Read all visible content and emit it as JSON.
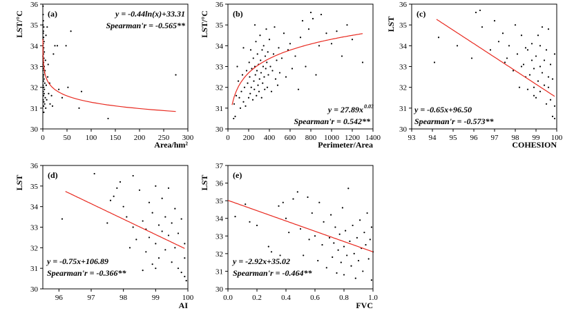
{
  "chart_data": [
    {
      "type": "scatter",
      "panel_label": "(a)",
      "xlabel": "Area/hm²",
      "ylabel": "LST/°C",
      "xlim": [
        0,
        300
      ],
      "ylim": [
        30,
        36
      ],
      "xticks": [
        0,
        50,
        100,
        150,
        200,
        250,
        300
      ],
      "yticks": [
        30,
        31,
        32,
        33,
        34,
        35,
        36
      ],
      "annotations": [
        "y = -0.44ln(x)+33.31",
        "Spearman'r = -0.565**"
      ],
      "fit": {
        "kind": "log",
        "a": -0.44,
        "b": 33.31,
        "x_range": [
          0.1,
          275
        ]
      },
      "points": [
        [
          0.4,
          35.9
        ],
        [
          0.6,
          35.5
        ],
        [
          1,
          35.2
        ],
        [
          0.3,
          35.0
        ],
        [
          2,
          34.9
        ],
        [
          1.2,
          34.7
        ],
        [
          0.8,
          34.6
        ],
        [
          1.6,
          34.4
        ],
        [
          0.5,
          34.3
        ],
        [
          2.5,
          34.2
        ],
        [
          1,
          34.1
        ],
        [
          0.3,
          34.0
        ],
        [
          1.8,
          33.9
        ],
        [
          0.7,
          33.8
        ],
        [
          3,
          33.7
        ],
        [
          1.3,
          33.6
        ],
        [
          0.4,
          33.5
        ],
        [
          2.2,
          33.4
        ],
        [
          0.9,
          33.3
        ],
        [
          1.5,
          33.2
        ],
        [
          0.6,
          33.1
        ],
        [
          2.8,
          33.0
        ],
        [
          1.1,
          32.9
        ],
        [
          0.5,
          32.8
        ],
        [
          3.5,
          32.7
        ],
        [
          1.7,
          32.6
        ],
        [
          0.8,
          32.5
        ],
        [
          2.4,
          32.4
        ],
        [
          1.2,
          32.3
        ],
        [
          4,
          32.2
        ],
        [
          0.6,
          32.1
        ],
        [
          1.9,
          32.0
        ],
        [
          3.2,
          31.9
        ],
        [
          0.9,
          31.8
        ],
        [
          2.6,
          31.7
        ],
        [
          1.4,
          31.6
        ],
        [
          5,
          31.5
        ],
        [
          0.7,
          31.4
        ],
        [
          2.1,
          31.3
        ],
        [
          3.8,
          31.2
        ],
        [
          1.6,
          31.1
        ],
        [
          6,
          31.0
        ],
        [
          4.5,
          32.8
        ],
        [
          5.5,
          33.3
        ],
        [
          7,
          32.1
        ],
        [
          8,
          31.4
        ],
        [
          10,
          32.5
        ],
        [
          12,
          31.7
        ],
        [
          15,
          31.2
        ],
        [
          18,
          31.6
        ],
        [
          6.5,
          34.5
        ],
        [
          9,
          34.9
        ],
        [
          11,
          33.1
        ],
        [
          14,
          32.2
        ],
        [
          25,
          34.0
        ],
        [
          30,
          34.0
        ],
        [
          33,
          31.9
        ],
        [
          48,
          34.0
        ],
        [
          52,
          32.0
        ],
        [
          58,
          34.7
        ],
        [
          75,
          31.0
        ],
        [
          80,
          31.8
        ],
        [
          40,
          31.5
        ],
        [
          20,
          31.1
        ],
        [
          135,
          30.5
        ],
        [
          275,
          32.6
        ],
        [
          2,
          30.8
        ],
        [
          22,
          33.6
        ]
      ]
    },
    {
      "type": "scatter",
      "panel_label": "(b)",
      "xlabel": "Perimeter/Area",
      "ylabel": "LST/°C",
      "xlim": [
        0,
        1400
      ],
      "ylim": [
        30,
        36
      ],
      "xticks": [
        0,
        200,
        400,
        600,
        800,
        1000,
        1200,
        1400
      ],
      "yticks": [
        30,
        31,
        32,
        33,
        34,
        35,
        36
      ],
      "annotations": [
        "y = 27.89x",
        "0.03",
        "Spearman'r = 0.542**"
      ],
      "fit": {
        "kind": "power",
        "a": 27.89,
        "b": 0.03,
        "x_range": [
          40,
          1300
        ]
      },
      "points": [
        [
          55,
          30.5
        ],
        [
          60,
          31.2
        ],
        [
          70,
          30.6
        ],
        [
          80,
          31.6
        ],
        [
          100,
          32.3
        ],
        [
          110,
          31.5
        ],
        [
          120,
          31.0
        ],
        [
          130,
          31.8
        ],
        [
          140,
          32.6
        ],
        [
          150,
          31.3
        ],
        [
          160,
          32.0
        ],
        [
          170,
          31.1
        ],
        [
          180,
          32.8
        ],
        [
          190,
          32.2
        ],
        [
          200,
          31.5
        ],
        [
          205,
          33.2
        ],
        [
          210,
          32.5
        ],
        [
          215,
          31.7
        ],
        [
          220,
          33.8
        ],
        [
          225,
          32.0
        ],
        [
          230,
          32.9
        ],
        [
          240,
          31.4
        ],
        [
          245,
          33.4
        ],
        [
          250,
          32.3
        ],
        [
          255,
          31.9
        ],
        [
          260,
          33.0
        ],
        [
          265,
          32.6
        ],
        [
          270,
          34.2
        ],
        [
          275,
          31.6
        ],
        [
          280,
          32.8
        ],
        [
          285,
          33.6
        ],
        [
          290,
          32.1
        ],
        [
          295,
          33.1
        ],
        [
          300,
          31.8
        ],
        [
          305,
          32.4
        ],
        [
          310,
          34.5
        ],
        [
          315,
          33.3
        ],
        [
          320,
          32.7
        ],
        [
          325,
          31.5
        ],
        [
          330,
          33.8
        ],
        [
          335,
          32.2
        ],
        [
          340,
          33.0
        ],
        [
          345,
          34.0
        ],
        [
          350,
          32.5
        ],
        [
          355,
          31.9
        ],
        [
          360,
          33.5
        ],
        [
          365,
          32.9
        ],
        [
          370,
          34.8
        ],
        [
          375,
          33.2
        ],
        [
          380,
          32.0
        ],
        [
          385,
          33.7
        ],
        [
          390,
          32.6
        ],
        [
          400,
          34.3
        ],
        [
          410,
          33.0
        ],
        [
          420,
          31.8
        ],
        [
          430,
          32.8
        ],
        [
          440,
          33.6
        ],
        [
          450,
          34.9
        ],
        [
          460,
          32.4
        ],
        [
          470,
          33.3
        ],
        [
          480,
          32.1
        ],
        [
          490,
          33.9
        ],
        [
          500,
          32.7
        ],
        [
          520,
          33.4
        ],
        [
          540,
          34.6
        ],
        [
          560,
          32.5
        ],
        [
          580,
          33.8
        ],
        [
          600,
          34.1
        ],
        [
          620,
          32.9
        ],
        [
          650,
          33.5
        ],
        [
          680,
          31.9
        ],
        [
          700,
          34.4
        ],
        [
          720,
          35.2
        ],
        [
          750,
          33.0
        ],
        [
          780,
          34.8
        ],
        [
          800,
          35.6
        ],
        [
          820,
          35.3
        ],
        [
          850,
          32.6
        ],
        [
          880,
          34.0
        ],
        [
          900,
          35.5
        ],
        [
          950,
          34.6
        ],
        [
          1000,
          34.1
        ],
        [
          1050,
          34.7
        ],
        [
          1100,
          33.5
        ],
        [
          1150,
          35.0
        ],
        [
          1200,
          34.3
        ],
        [
          1300,
          33.2
        ],
        [
          150,
          33.9
        ],
        [
          90,
          33.0
        ],
        [
          260,
          35.0
        ]
      ]
    },
    {
      "type": "scatter",
      "panel_label": "(c)",
      "xlabel": "COHESION",
      "ylabel": "LST",
      "xlim": [
        93,
        100
      ],
      "ylim": [
        30,
        36
      ],
      "xticks": [
        93,
        94,
        95,
        96,
        97,
        98,
        99,
        100
      ],
      "yticks": [
        30,
        31,
        32,
        33,
        34,
        35,
        36
      ],
      "annotations": [
        "y = -0.65x+96.50",
        "Spearman'r = -0.573**"
      ],
      "fit": {
        "kind": "linear",
        "a": -0.65,
        "b": 96.5,
        "x_range": [
          94.2,
          99.9
        ]
      },
      "points": [
        [
          94.1,
          33.2
        ],
        [
          94.3,
          34.4
        ],
        [
          95.2,
          34.0
        ],
        [
          95.9,
          33.4
        ],
        [
          96.1,
          35.6
        ],
        [
          96.3,
          35.7
        ],
        [
          96.4,
          34.9
        ],
        [
          96.8,
          33.8
        ],
        [
          97.0,
          35.2
        ],
        [
          97.2,
          34.2
        ],
        [
          97.4,
          34.6
        ],
        [
          97.6,
          33.4
        ],
        [
          97.7,
          34.0
        ],
        [
          97.9,
          32.8
        ],
        [
          98.0,
          35.0
        ],
        [
          98.1,
          33.6
        ],
        [
          98.2,
          32.0
        ],
        [
          98.3,
          34.5
        ],
        [
          98.4,
          33.1
        ],
        [
          98.5,
          32.5
        ],
        [
          98.6,
          31.9
        ],
        [
          98.6,
          33.8
        ],
        [
          98.7,
          32.6
        ],
        [
          98.8,
          33.3
        ],
        [
          98.8,
          34.1
        ],
        [
          98.9,
          32.0
        ],
        [
          98.9,
          32.9
        ],
        [
          99.0,
          33.5
        ],
        [
          99.0,
          31.5
        ],
        [
          99.1,
          32.3
        ],
        [
          99.1,
          34.5
        ],
        [
          99.2,
          33.0
        ],
        [
          99.2,
          31.8
        ],
        [
          99.3,
          32.7
        ],
        [
          99.3,
          34.9
        ],
        [
          99.4,
          33.3
        ],
        [
          99.4,
          32.1
        ],
        [
          99.5,
          31.2
        ],
        [
          99.5,
          33.8
        ],
        [
          99.6,
          32.5
        ],
        [
          99.6,
          34.8
        ],
        [
          99.7,
          31.4
        ],
        [
          99.7,
          33.1
        ],
        [
          99.8,
          30.6
        ],
        [
          99.8,
          32.4
        ],
        [
          99.9,
          33.6
        ],
        [
          99.9,
          31.1
        ],
        [
          99.9,
          30.5
        ],
        [
          98.5,
          33.9
        ],
        [
          98.9,
          31.6
        ],
        [
          99.2,
          34.0
        ],
        [
          99.6,
          32.0
        ],
        [
          97.5,
          33.2
        ],
        [
          98.3,
          33.0
        ]
      ]
    },
    {
      "type": "scatter",
      "panel_label": "(d)",
      "xlabel": "AI",
      "ylabel": "LST",
      "xlim": [
        95.5,
        100
      ],
      "ylim": [
        30,
        36
      ],
      "xticks": [
        96,
        97,
        98,
        99,
        100
      ],
      "yticks": [
        30,
        31,
        32,
        33,
        34,
        35,
        36
      ],
      "annotations": [
        "y = -0.75x+106.89",
        "Spearman'r = -0.366**"
      ],
      "fit": {
        "kind": "linear",
        "a": -0.75,
        "b": 106.89,
        "x_range": [
          96.2,
          99.9
        ]
      },
      "points": [
        [
          96.1,
          33.4
        ],
        [
          97.1,
          35.6
        ],
        [
          97.5,
          33.2
        ],
        [
          97.6,
          34.3
        ],
        [
          97.7,
          34.5
        ],
        [
          97.9,
          35.2
        ],
        [
          98.0,
          34.0
        ],
        [
          98.1,
          33.5
        ],
        [
          98.2,
          32.0
        ],
        [
          98.3,
          35.5
        ],
        [
          98.3,
          33.0
        ],
        [
          98.4,
          32.4
        ],
        [
          98.5,
          34.8
        ],
        [
          98.6,
          33.3
        ],
        [
          98.7,
          31.8
        ],
        [
          98.7,
          32.9
        ],
        [
          98.8,
          34.2
        ],
        [
          98.8,
          32.5
        ],
        [
          98.9,
          31.2
        ],
        [
          98.9,
          33.7
        ],
        [
          99.0,
          35.0
        ],
        [
          99.0,
          32.2
        ],
        [
          99.1,
          33.1
        ],
        [
          99.1,
          31.5
        ],
        [
          99.2,
          34.4
        ],
        [
          99.2,
          32.8
        ],
        [
          99.3,
          33.5
        ],
        [
          99.3,
          31.9
        ],
        [
          99.4,
          32.6
        ],
        [
          99.4,
          34.9
        ],
        [
          99.5,
          33.2
        ],
        [
          99.5,
          31.3
        ],
        [
          99.6,
          32.0
        ],
        [
          99.6,
          33.9
        ],
        [
          99.7,
          31.0
        ],
        [
          99.7,
          32.7
        ],
        [
          99.8,
          33.4
        ],
        [
          99.8,
          30.8
        ],
        [
          99.9,
          32.2
        ],
        [
          99.9,
          30.6
        ],
        [
          99.95,
          30.4
        ],
        [
          99.9,
          31.5
        ],
        [
          98.6,
          30.9
        ],
        [
          99.0,
          31.0
        ],
        [
          97.8,
          34.9
        ]
      ]
    },
    {
      "type": "scatter",
      "panel_label": "(e)",
      "xlabel": "FVC",
      "ylabel": "LST",
      "xlim": [
        0,
        1
      ],
      "ylim": [
        30,
        37
      ],
      "xticks": [
        0.0,
        0.2,
        0.4,
        0.6,
        0.8,
        1.0
      ],
      "yticks": [
        30,
        31,
        32,
        33,
        34,
        35,
        36,
        37
      ],
      "annotations": [
        "y = -2.92x+35.02",
        "Spearman'r = -0.464**"
      ],
      "fit": {
        "kind": "linear",
        "a": -2.92,
        "b": 35.02,
        "x_range": [
          0,
          1
        ]
      },
      "points": [
        [
          0.05,
          34.1
        ],
        [
          0.12,
          34.8
        ],
        [
          0.2,
          33.6
        ],
        [
          0.28,
          32.4
        ],
        [
          0.3,
          32.1
        ],
        [
          0.35,
          34.7
        ],
        [
          0.38,
          34.9
        ],
        [
          0.4,
          34.0
        ],
        [
          0.42,
          33.2
        ],
        [
          0.45,
          35.1
        ],
        [
          0.48,
          35.5
        ],
        [
          0.5,
          33.4
        ],
        [
          0.52,
          31.9
        ],
        [
          0.55,
          35.2
        ],
        [
          0.56,
          32.8
        ],
        [
          0.58,
          34.3
        ],
        [
          0.6,
          33.0
        ],
        [
          0.62,
          31.6
        ],
        [
          0.63,
          34.9
        ],
        [
          0.65,
          32.5
        ],
        [
          0.66,
          33.8
        ],
        [
          0.68,
          31.2
        ],
        [
          0.7,
          32.9
        ],
        [
          0.71,
          34.2
        ],
        [
          0.72,
          31.8
        ],
        [
          0.73,
          32.6
        ],
        [
          0.74,
          33.5
        ],
        [
          0.75,
          30.9
        ],
        [
          0.76,
          32.2
        ],
        [
          0.77,
          33.1
        ],
        [
          0.78,
          31.5
        ],
        [
          0.79,
          34.6
        ],
        [
          0.8,
          32.4
        ],
        [
          0.8,
          30.8
        ],
        [
          0.81,
          33.3
        ],
        [
          0.82,
          31.9
        ],
        [
          0.83,
          35.7
        ],
        [
          0.84,
          32.7
        ],
        [
          0.85,
          31.3
        ],
        [
          0.86,
          33.6
        ],
        [
          0.87,
          32.0
        ],
        [
          0.88,
          30.6
        ],
        [
          0.89,
          32.9
        ],
        [
          0.9,
          31.6
        ],
        [
          0.91,
          33.9
        ],
        [
          0.92,
          32.3
        ],
        [
          0.93,
          31.0
        ],
        [
          0.94,
          33.2
        ],
        [
          0.95,
          32.5
        ],
        [
          0.96,
          34.3
        ],
        [
          0.97,
          31.7
        ],
        [
          0.98,
          32.8
        ],
        [
          0.99,
          30.5
        ],
        [
          0.99,
          33.5
        ],
        [
          1.0,
          32.1
        ],
        [
          0.15,
          33.8
        ],
        [
          0.36,
          31.9
        ]
      ]
    }
  ]
}
